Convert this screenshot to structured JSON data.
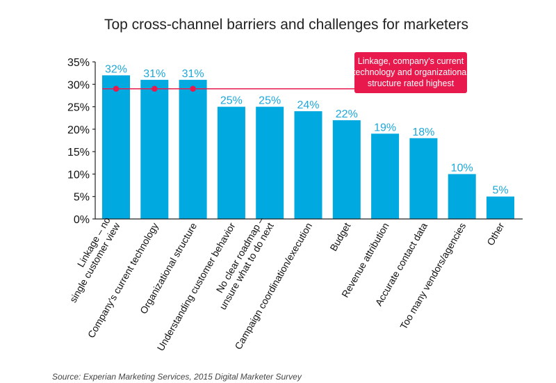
{
  "chart_data": {
    "type": "bar",
    "title": "Top cross-channel barriers and challenges for marketers",
    "xlabel": "",
    "ylabel": "",
    "ylim": [
      0,
      35
    ],
    "yticks": [
      "0%",
      "5%",
      "10%",
      "15%",
      "20%",
      "25%",
      "30%",
      "35%"
    ],
    "categories": [
      [
        "Linkage – no",
        "single customer view"
      ],
      [
        "Company's current technology"
      ],
      [
        "Organizational structure"
      ],
      [
        "Understanding customer behavior"
      ],
      [
        "No clear roadmap –",
        "unsure what to do next"
      ],
      [
        "Campaign coordination/execution"
      ],
      [
        "Budget"
      ],
      [
        "Revenue attribution"
      ],
      [
        "Accurate contact data"
      ],
      [
        "Too many vendors/agencies"
      ],
      [
        "Other"
      ]
    ],
    "values": [
      32,
      31,
      31,
      25,
      25,
      24,
      22,
      19,
      18,
      10,
      5
    ],
    "data_labels": [
      "32%",
      "31%",
      "31%",
      "25%",
      "25%",
      "24%",
      "22%",
      "19%",
      "18%",
      "10%",
      "5%"
    ],
    "grid": false,
    "highlight": {
      "value": 29,
      "bars": [
        0,
        1,
        2
      ],
      "callout": [
        "Linkage, company's current",
        "technology and organizational",
        "structure rated highest"
      ]
    },
    "colors": {
      "bar": "#00a9e0",
      "label": "#1ea7da",
      "highlight": "#e8194d",
      "axis": "#222222"
    }
  },
  "source": "Source: Experian Marketing Services, 2015 Digital Marketer Survey"
}
